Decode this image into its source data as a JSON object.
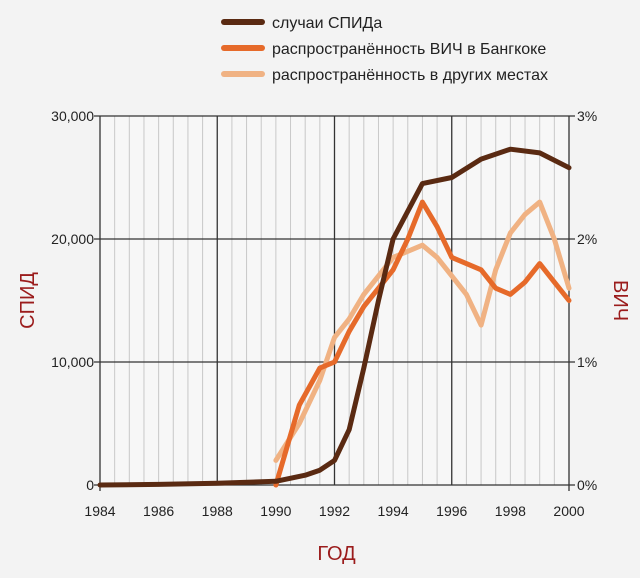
{
  "colors": {
    "aids": "#5a2a12",
    "hiv_bangkok": "#e66a2a",
    "hiv_other": "#f0b283",
    "axis_title": "#9b1c1c",
    "grid_major": "#333333",
    "grid_minor": "#c8c8c8",
    "plot_bg": "#f7f7f7"
  },
  "chart_data": {
    "type": "line",
    "title": "",
    "xlabel": "ГОД",
    "ylabel_left": "СПИД",
    "ylabel_right": "ВИЧ",
    "xlim": [
      1984,
      2000
    ],
    "ylim_left": [
      0,
      30000
    ],
    "ylim_right": [
      0,
      3
    ],
    "x_ticks": [
      "1984",
      "1986",
      "1988",
      "1990",
      "1992",
      "1994",
      "1996",
      "1998",
      "2000"
    ],
    "y_left_ticks": [
      "0",
      "10,000",
      "20,000",
      "30,000"
    ],
    "y_right_ticks": [
      "0%",
      "1%",
      "2%",
      "3%"
    ],
    "grid": true,
    "legend_position": "top",
    "series": [
      {
        "name": "случаи СПИДа",
        "axis": "left",
        "color": "#5a2a12",
        "x": [
          1984,
          1986,
          1988,
          1990,
          1991,
          1991.5,
          1992,
          1992.5,
          1993,
          1993.5,
          1994,
          1995,
          1996,
          1997,
          1998,
          1999,
          2000
        ],
        "y": [
          0,
          50,
          150,
          300,
          800,
          1200,
          2000,
          4500,
          9500,
          15000,
          20000,
          24500,
          25000,
          26500,
          27300,
          27000,
          25800
        ]
      },
      {
        "name": "распространённость ВИЧ в Бангкоке",
        "axis": "right",
        "color": "#e66a2a",
        "x": [
          1990,
          1990.8,
          1991.5,
          1992,
          1992.5,
          1993,
          1993.5,
          1994,
          1994.5,
          1995,
          1995.5,
          1996,
          1996.5,
          1997,
          1997.5,
          1998,
          1998.5,
          1999,
          1999.5,
          2000
        ],
        "y": [
          0,
          0.65,
          0.95,
          1.0,
          1.25,
          1.45,
          1.6,
          1.75,
          2.0,
          2.3,
          2.1,
          1.85,
          1.8,
          1.75,
          1.6,
          1.55,
          1.65,
          1.8,
          1.65,
          1.5
        ]
      },
      {
        "name": "распространённость в других местах",
        "axis": "right",
        "color": "#f0b283",
        "x": [
          1990,
          1990.8,
          1991.5,
          1992,
          1992.5,
          1993,
          1993.5,
          1994,
          1994.5,
          1995,
          1995.5,
          1996,
          1996.5,
          1997,
          1997.5,
          1998,
          1998.5,
          1999,
          1999.5,
          2000
        ],
        "y": [
          0.2,
          0.5,
          0.85,
          1.2,
          1.35,
          1.55,
          1.7,
          1.85,
          1.9,
          1.95,
          1.85,
          1.7,
          1.55,
          1.3,
          1.75,
          2.05,
          2.2,
          2.3,
          2.0,
          1.6
        ]
      }
    ]
  }
}
